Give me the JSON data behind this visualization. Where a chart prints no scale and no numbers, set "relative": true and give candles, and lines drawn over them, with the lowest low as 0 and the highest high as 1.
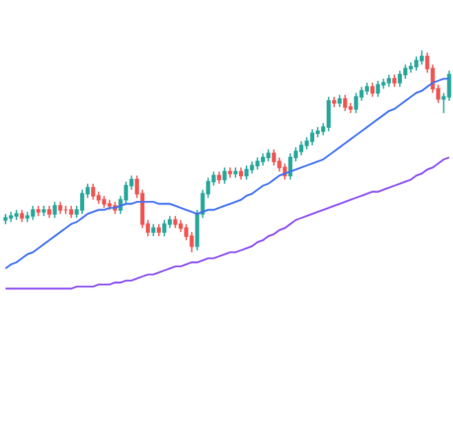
{
  "chart_data": {
    "type": "candlestick",
    "relative": true,
    "legend": false,
    "categories": [
      null,
      null,
      null,
      null,
      null,
      null,
      null,
      null,
      null,
      null,
      null,
      null,
      null,
      null,
      null,
      null,
      null,
      null,
      null,
      null,
      null,
      null,
      null,
      null,
      null,
      null,
      null,
      null,
      null,
      null,
      null,
      null,
      null,
      null,
      null,
      null,
      null,
      null,
      null,
      null,
      null,
      null,
      null,
      null,
      null,
      null,
      null,
      null,
      null,
      null,
      null,
      null,
      null,
      null,
      null,
      null,
      null,
      null,
      null,
      null,
      null,
      null,
      null,
      null,
      null,
      null,
      null,
      null,
      null,
      null,
      null,
      null,
      null,
      null,
      null,
      null,
      null,
      null,
      null,
      null,
      null,
      null
    ],
    "ohlc": [
      [
        0.16,
        0.19,
        0.14,
        0.17
      ],
      [
        0.17,
        0.2,
        0.15,
        0.18
      ],
      [
        0.18,
        0.21,
        0.16,
        0.19
      ],
      [
        0.19,
        0.21,
        0.15,
        0.17
      ],
      [
        0.17,
        0.2,
        0.15,
        0.18
      ],
      [
        0.18,
        0.23,
        0.16,
        0.21
      ],
      [
        0.21,
        0.23,
        0.18,
        0.2
      ],
      [
        0.2,
        0.23,
        0.18,
        0.21
      ],
      [
        0.21,
        0.23,
        0.17,
        0.19
      ],
      [
        0.19,
        0.25,
        0.17,
        0.23
      ],
      [
        0.23,
        0.25,
        0.19,
        0.21
      ],
      [
        0.21,
        0.23,
        0.19,
        0.21
      ],
      [
        0.21,
        0.23,
        0.17,
        0.19
      ],
      [
        0.19,
        0.23,
        0.17,
        0.21
      ],
      [
        0.21,
        0.31,
        0.19,
        0.29
      ],
      [
        0.29,
        0.34,
        0.27,
        0.32
      ],
      [
        0.32,
        0.34,
        0.26,
        0.28
      ],
      [
        0.28,
        0.3,
        0.24,
        0.26
      ],
      [
        0.26,
        0.28,
        0.22,
        0.24
      ],
      [
        0.24,
        0.26,
        0.21,
        0.23
      ],
      [
        0.23,
        0.25,
        0.19,
        0.21
      ],
      [
        0.21,
        0.28,
        0.19,
        0.26
      ],
      [
        0.26,
        0.35,
        0.24,
        0.33
      ],
      [
        0.33,
        0.38,
        0.31,
        0.36
      ],
      [
        0.36,
        0.38,
        0.27,
        0.29
      ],
      [
        0.29,
        0.31,
        0.12,
        0.14
      ],
      [
        0.14,
        0.16,
        0.08,
        0.1
      ],
      [
        0.1,
        0.14,
        0.08,
        0.12
      ],
      [
        0.12,
        0.14,
        0.08,
        0.1
      ],
      [
        0.1,
        0.16,
        0.08,
        0.14
      ],
      [
        0.14,
        0.18,
        0.12,
        0.16
      ],
      [
        0.16,
        0.18,
        0.12,
        0.14
      ],
      [
        0.14,
        0.16,
        0.1,
        0.12
      ],
      [
        0.12,
        0.14,
        0.06,
        0.08
      ],
      [
        0.08,
        0.1,
        0.0,
        0.03
      ],
      [
        0.03,
        0.21,
        0.01,
        0.19
      ],
      [
        0.19,
        0.31,
        0.17,
        0.29
      ],
      [
        0.29,
        0.37,
        0.27,
        0.35
      ],
      [
        0.35,
        0.4,
        0.33,
        0.38
      ],
      [
        0.38,
        0.4,
        0.34,
        0.36
      ],
      [
        0.36,
        0.42,
        0.34,
        0.4
      ],
      [
        0.4,
        0.42,
        0.37,
        0.39
      ],
      [
        0.39,
        0.42,
        0.37,
        0.4
      ],
      [
        0.4,
        0.42,
        0.36,
        0.38
      ],
      [
        0.38,
        0.43,
        0.36,
        0.41
      ],
      [
        0.41,
        0.45,
        0.39,
        0.43
      ],
      [
        0.43,
        0.47,
        0.41,
        0.45
      ],
      [
        0.45,
        0.49,
        0.43,
        0.47
      ],
      [
        0.47,
        0.51,
        0.45,
        0.49
      ],
      [
        0.49,
        0.51,
        0.43,
        0.45
      ],
      [
        0.45,
        0.47,
        0.4,
        0.42
      ],
      [
        0.42,
        0.44,
        0.36,
        0.38
      ],
      [
        0.38,
        0.49,
        0.36,
        0.47
      ],
      [
        0.47,
        0.52,
        0.45,
        0.5
      ],
      [
        0.5,
        0.55,
        0.48,
        0.53
      ],
      [
        0.53,
        0.57,
        0.51,
        0.55
      ],
      [
        0.55,
        0.61,
        0.53,
        0.59
      ],
      [
        0.59,
        0.62,
        0.57,
        0.6
      ],
      [
        0.6,
        0.64,
        0.58,
        0.62
      ],
      [
        0.62,
        0.77,
        0.6,
        0.75
      ],
      [
        0.75,
        0.77,
        0.72,
        0.74
      ],
      [
        0.74,
        0.78,
        0.72,
        0.76
      ],
      [
        0.76,
        0.78,
        0.7,
        0.72
      ],
      [
        0.72,
        0.74,
        0.69,
        0.71
      ],
      [
        0.71,
        0.79,
        0.69,
        0.77
      ],
      [
        0.77,
        0.82,
        0.75,
        0.8
      ],
      [
        0.8,
        0.84,
        0.78,
        0.82
      ],
      [
        0.82,
        0.84,
        0.77,
        0.79
      ],
      [
        0.79,
        0.85,
        0.77,
        0.83
      ],
      [
        0.83,
        0.86,
        0.81,
        0.84
      ],
      [
        0.84,
        0.88,
        0.82,
        0.86
      ],
      [
        0.86,
        0.88,
        0.82,
        0.84
      ],
      [
        0.84,
        0.9,
        0.82,
        0.88
      ],
      [
        0.88,
        0.93,
        0.86,
        0.91
      ],
      [
        0.91,
        0.94,
        0.89,
        0.92
      ],
      [
        0.92,
        0.97,
        0.9,
        0.95
      ],
      [
        0.95,
        1.0,
        0.93,
        0.97
      ],
      [
        0.97,
        0.99,
        0.89,
        0.91
      ],
      [
        0.91,
        0.93,
        0.79,
        0.81
      ],
      [
        0.81,
        0.83,
        0.74,
        0.76
      ],
      [
        0.76,
        0.79,
        0.69,
        0.77
      ],
      [
        0.77,
        0.9,
        0.75,
        0.88
      ]
    ],
    "series": [
      {
        "type": "line",
        "color": "#3d6ff2",
        "values": [
          -0.08,
          -0.06,
          -0.05,
          -0.03,
          -0.01,
          0.0,
          0.02,
          0.04,
          0.06,
          0.08,
          0.1,
          0.12,
          0.14,
          0.15,
          0.17,
          0.19,
          0.2,
          0.21,
          0.21,
          0.22,
          0.22,
          0.23,
          0.24,
          0.24,
          0.25,
          0.25,
          0.25,
          0.25,
          0.24,
          0.24,
          0.24,
          0.23,
          0.22,
          0.21,
          0.2,
          0.19,
          0.2,
          0.21,
          0.21,
          0.22,
          0.23,
          0.24,
          0.25,
          0.26,
          0.28,
          0.29,
          0.31,
          0.33,
          0.34,
          0.36,
          0.38,
          0.39,
          0.4,
          0.41,
          0.42,
          0.43,
          0.44,
          0.45,
          0.46,
          0.48,
          0.5,
          0.52,
          0.54,
          0.56,
          0.58,
          0.6,
          0.62,
          0.64,
          0.66,
          0.68,
          0.7,
          0.71,
          0.73,
          0.75,
          0.77,
          0.79,
          0.8,
          0.82,
          0.84,
          0.85,
          0.86,
          0.86
        ]
      },
      {
        "type": "line",
        "color": "#8a4df0",
        "values": [
          -0.18,
          -0.18,
          -0.18,
          -0.18,
          -0.18,
          -0.18,
          -0.18,
          -0.18,
          -0.18,
          -0.18,
          -0.18,
          -0.18,
          -0.18,
          -0.17,
          -0.17,
          -0.17,
          -0.17,
          -0.16,
          -0.16,
          -0.16,
          -0.15,
          -0.15,
          -0.14,
          -0.14,
          -0.13,
          -0.12,
          -0.11,
          -0.11,
          -0.1,
          -0.09,
          -0.08,
          -0.07,
          -0.07,
          -0.06,
          -0.05,
          -0.05,
          -0.04,
          -0.03,
          -0.03,
          -0.02,
          -0.01,
          0.0,
          0.0,
          0.01,
          0.02,
          0.03,
          0.05,
          0.06,
          0.08,
          0.09,
          0.11,
          0.12,
          0.14,
          0.16,
          0.17,
          0.18,
          0.19,
          0.2,
          0.21,
          0.22,
          0.23,
          0.24,
          0.25,
          0.26,
          0.27,
          0.28,
          0.29,
          0.3,
          0.3,
          0.31,
          0.32,
          0.33,
          0.34,
          0.35,
          0.36,
          0.38,
          0.39,
          0.41,
          0.42,
          0.44,
          0.46,
          0.47
        ]
      }
    ]
  }
}
